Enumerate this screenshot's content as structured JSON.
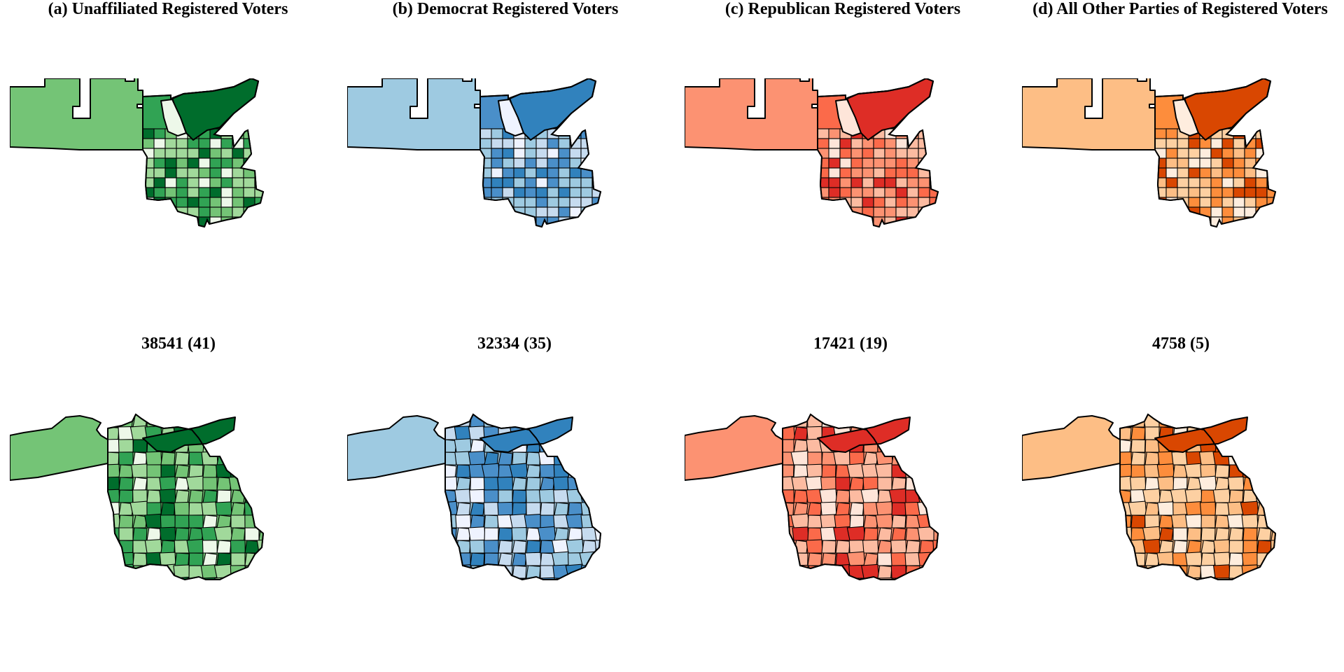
{
  "panels": [
    {
      "title": "(a) Unaffiliated Registered Voters",
      "count": "38541 (41)",
      "palette": {
        "base": "#74c476",
        "dark": "#006d2c",
        "mid": "#31a354",
        "light": "#a1d99b",
        "pale": "#edf8e9"
      }
    },
    {
      "title": "(b) Democrat Registered Voters",
      "count": "32334 (35)",
      "palette": {
        "base": "#9ecae1",
        "dark": "#3182bd",
        "mid": "#4a8fc9",
        "light": "#c6dbef",
        "pale": "#eff3ff"
      }
    },
    {
      "title": "(c) Republican Registered Voters",
      "count": "17421 (19)",
      "palette": {
        "base": "#fc9272",
        "dark": "#de2d26",
        "mid": "#fb6a4a",
        "light": "#fcbba1",
        "pale": "#fee5d9"
      }
    },
    {
      "title": "(d) All Other Parties of Registered Voters",
      "count": "4758 (5)",
      "palette": {
        "base": "#fdbe85",
        "dark": "#d94701",
        "mid": "#fd8d3c",
        "light": "#fdd0a2",
        "pale": "#feedde"
      }
    }
  ]
}
